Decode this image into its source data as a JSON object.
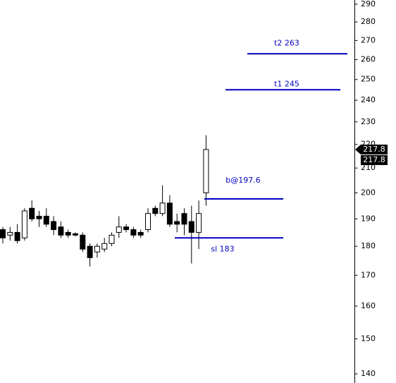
{
  "chart_data": {
    "type": "candlestick",
    "open": [
      186,
      184,
      185,
      183,
      194,
      191,
      191,
      189,
      187,
      185,
      184.5,
      184,
      180,
      178,
      179,
      181,
      185,
      187,
      186,
      185,
      186,
      194,
      192,
      196,
      189,
      192,
      189,
      185,
      200
    ],
    "high": [
      187,
      187,
      188,
      194,
      197,
      193,
      194,
      191,
      189,
      186,
      185,
      185,
      181,
      181,
      183,
      185,
      191,
      188,
      187,
      186,
      194,
      195,
      203,
      199,
      192,
      194,
      195,
      197,
      224
    ],
    "low": [
      181,
      182,
      181,
      182,
      189,
      187,
      187,
      184,
      183,
      183,
      183.5,
      178,
      173,
      176,
      178,
      180,
      183,
      185,
      183,
      183,
      185,
      191,
      191,
      187,
      185,
      184,
      174,
      179,
      195
    ],
    "close": [
      183,
      185,
      182,
      193,
      190,
      190,
      188,
      186,
      184,
      184,
      184,
      179,
      176,
      180,
      181,
      184,
      187,
      186,
      184,
      184,
      192,
      192,
      196,
      188,
      188,
      188,
      185,
      192,
      217.8
    ],
    "log_scale": true,
    "ylim": [
      137.5,
      292.4
    ],
    "yticks": [
      140,
      150,
      160,
      170,
      180,
      190,
      200,
      210,
      220,
      230,
      240,
      250,
      260,
      270,
      280,
      290
    ],
    "levels": [
      {
        "label": "t2 263",
        "value": 263
      },
      {
        "label": "t1 245",
        "value": 245
      },
      {
        "label": "b@197.6",
        "value": 197.6
      },
      {
        "label": "sl 183",
        "value": 183
      }
    ],
    "level_color": "#0000c0",
    "last_price": 217.8
  }
}
